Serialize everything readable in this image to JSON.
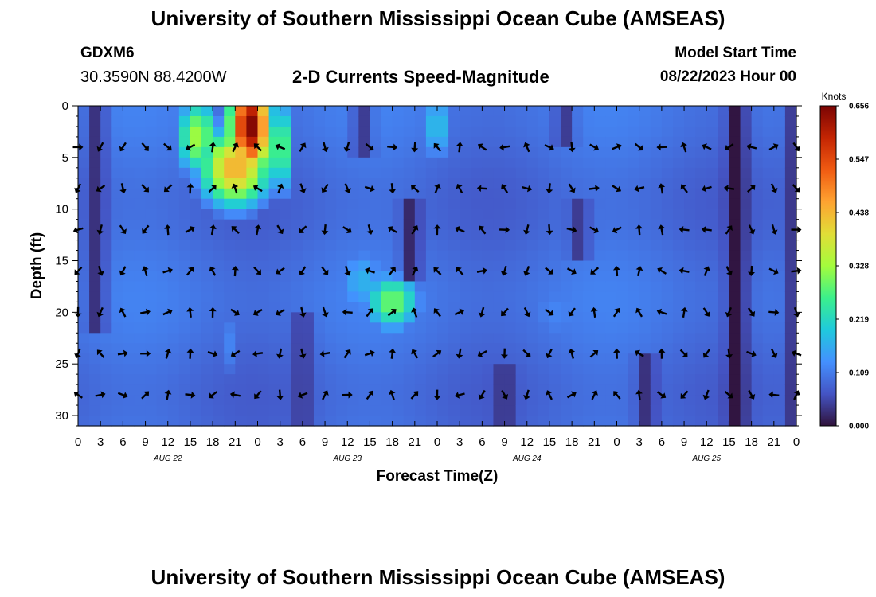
{
  "header": {
    "title": "University of Southern Mississippi Ocean Cube (AMSEAS)",
    "station": "GDXM6",
    "coords": "30.3590N  88.4200W",
    "subtitle": "2-D Currents Speed-Magnitude",
    "model_start_label": "Model Start Time",
    "model_start_value": "08/22/2023 Hour 00"
  },
  "footer": {
    "title": "University of Southern Mississippi Ocean Cube (AMSEAS)"
  },
  "chart_data": {
    "type": "heatmap",
    "xlabel": "Forecast Time(Z)",
    "ylabel": "Depth (ft)",
    "x_tick_labels": [
      "0",
      "3",
      "6",
      "9",
      "12",
      "15",
      "18",
      "21",
      "0",
      "3",
      "6",
      "9",
      "12",
      "15",
      "18",
      "21",
      "0",
      "3",
      "6",
      "9",
      "12",
      "15",
      "18",
      "21",
      "0",
      "3",
      "6",
      "9",
      "12",
      "15",
      "18",
      "21",
      "0"
    ],
    "x_range_hours": [
      0,
      96
    ],
    "day_labels": [
      {
        "label": "AUG 22",
        "hour": 12
      },
      {
        "label": "AUG 23",
        "hour": 36
      },
      {
        "label": "AUG 24",
        "hour": 60
      },
      {
        "label": "AUG 25",
        "hour": 84
      }
    ],
    "y_ticks": [
      0,
      5,
      10,
      15,
      20,
      25,
      30
    ],
    "y_range_ft": [
      0,
      31
    ],
    "y_inverted": true,
    "colorbar": {
      "label": "Knots",
      "ticks": [
        "0.000",
        "0.109",
        "0.219",
        "0.328",
        "0.438",
        "0.547",
        "0.656"
      ],
      "range": [
        0,
        0.656
      ],
      "colors": [
        "#30123b",
        "#4454c4",
        "#4490fe",
        "#1fc9dd",
        "#3bf08b",
        "#a4fc3c",
        "#e1dd37",
        "#fea331",
        "#f05b12",
        "#c42503",
        "#7a0403"
      ]
    },
    "vector_depths_ft": [
      4,
      8,
      12,
      16,
      20,
      24,
      28
    ],
    "vector_hours": [
      0,
      3,
      6,
      9,
      12,
      15,
      18,
      21,
      24,
      27,
      30,
      33,
      36,
      39,
      42,
      45,
      48,
      51,
      54,
      57,
      60,
      63,
      66,
      69,
      72,
      75,
      78,
      81,
      84,
      87,
      90,
      93,
      96
    ],
    "speed_features_knots": [
      {
        "hour": 23,
        "depth": 2,
        "speed": 0.656,
        "sh": 3,
        "sd": 5
      },
      {
        "hour": 21,
        "depth": 6,
        "speed": 0.45,
        "sh": 5,
        "sd": 4
      },
      {
        "hour": 16,
        "depth": 3,
        "speed": 0.33,
        "sh": 3,
        "sd": 4
      },
      {
        "hour": 27,
        "depth": 4,
        "speed": 0.3,
        "sh": 2,
        "sd": 5
      },
      {
        "hour": 42,
        "depth": 19,
        "speed": 0.3,
        "sh": 4,
        "sd": 3
      },
      {
        "hour": 38,
        "depth": 17,
        "speed": 0.17,
        "sh": 4,
        "sd": 4
      },
      {
        "hour": 48,
        "depth": 2,
        "speed": 0.2,
        "sh": 2,
        "sd": 4
      },
      {
        "hour": 20,
        "depth": 23,
        "speed": 0.12,
        "sh": 2,
        "sd": 5
      },
      {
        "hour": 64,
        "depth": 20,
        "speed": 0.12,
        "sh": 6,
        "sd": 5
      }
    ],
    "calm_bands": [
      {
        "hour": 88,
        "depth_from": 0,
        "depth_to": 31,
        "speed": 0.0
      },
      {
        "hour": 2.5,
        "depth_from": 0,
        "depth_to": 22,
        "speed": 0.03
      },
      {
        "hour": 44.5,
        "depth_from": 9,
        "depth_to": 17,
        "speed": 0.02
      },
      {
        "hour": 38,
        "depth_from": 0,
        "depth_to": 5,
        "speed": 0.04
      },
      {
        "hour": 65,
        "depth_from": 0,
        "depth_to": 4,
        "speed": 0.04
      },
      {
        "hour": 67,
        "depth_from": 9,
        "depth_to": 15,
        "speed": 0.04
      },
      {
        "hour": 57,
        "depth_from": 25,
        "depth_to": 31,
        "speed": 0.03
      },
      {
        "hour": 30,
        "depth_from": 20,
        "depth_to": 31,
        "speed": 0.04
      },
      {
        "hour": 76,
        "depth_from": 24,
        "depth_to": 31,
        "speed": 0.03
      },
      {
        "hour": 96,
        "depth_from": 0,
        "depth_to": 31,
        "speed": 0.02
      }
    ]
  }
}
